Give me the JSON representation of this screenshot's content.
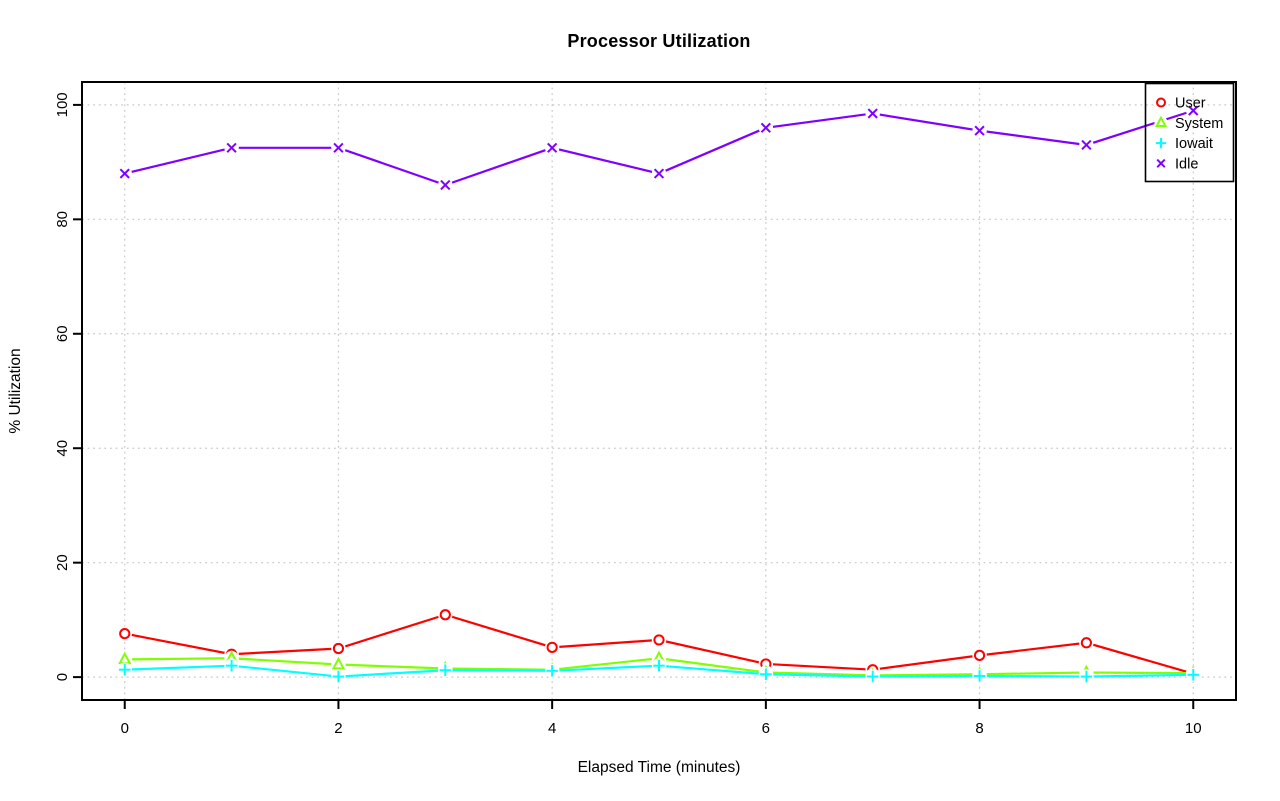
{
  "page": {
    "background": "#FFFFFF"
  },
  "chart_data": {
    "type": "line",
    "title": "Processor Utilization",
    "xlabel": "Elapsed Time (minutes)",
    "ylabel": "% Utilization",
    "x": [
      0,
      1,
      2,
      3,
      4,
      5,
      6,
      7,
      8,
      9,
      10
    ],
    "xticks": [
      0,
      2,
      4,
      6,
      8,
      10
    ],
    "yticks": [
      0,
      20,
      40,
      60,
      80,
      100
    ],
    "xlim": [
      -0.4,
      10.4
    ],
    "ylim": [
      -4,
      104
    ],
    "grid": true,
    "grid_color": "#C8C8C8",
    "axis_color": "#000000",
    "legend": {
      "position": "top-right",
      "entries": [
        "User",
        "System",
        "Iowait",
        "Idle"
      ]
    },
    "series": [
      {
        "name": "User",
        "color": "#FF0000",
        "marker": "circle",
        "values": [
          7.6,
          4.0,
          5.0,
          10.9,
          5.2,
          6.5,
          2.3,
          1.3,
          3.8,
          6.0,
          0.6
        ]
      },
      {
        "name": "System",
        "color": "#80FF00",
        "marker": "triangle",
        "values": [
          3.1,
          3.3,
          2.2,
          1.5,
          1.3,
          3.3,
          0.8,
          0.3,
          0.5,
          0.8,
          0.7
        ]
      },
      {
        "name": "Iowait",
        "color": "#00FFFF",
        "marker": "plus",
        "values": [
          1.3,
          2.0,
          0.1,
          1.2,
          1.1,
          2.0,
          0.5,
          0.1,
          0.2,
          0.1,
          0.4
        ]
      },
      {
        "name": "Idle",
        "color": "#8000FF",
        "marker": "x",
        "values": [
          88.0,
          92.5,
          92.5,
          86.0,
          92.5,
          88.0,
          96.0,
          98.5,
          95.5,
          93.0,
          99.0
        ]
      }
    ]
  }
}
